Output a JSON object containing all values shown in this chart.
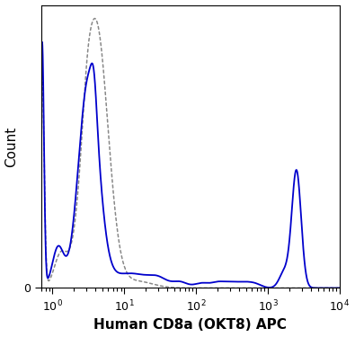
{
  "title": "",
  "xlabel": "Human CD8a (OKT8) APC",
  "ylabel": "Count",
  "xlim_log": [
    0.7,
    10000
  ],
  "ylim": [
    0,
    1.05
  ],
  "solid_color": "#0000cc",
  "dashed_color": "#888888",
  "background_color": "#ffffff",
  "xlabel_fontsize": 11,
  "ylabel_fontsize": 11,
  "tick_fontsize": 9
}
